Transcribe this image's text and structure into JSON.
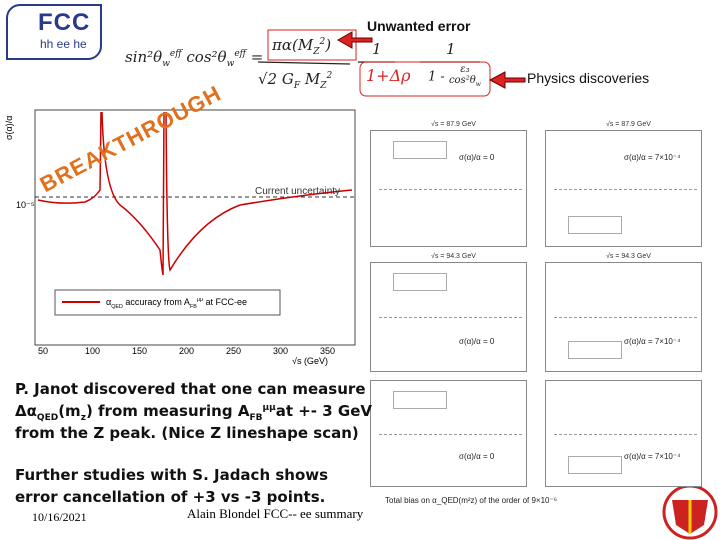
{
  "header": {
    "logo": {
      "title": "FCC",
      "subtitle": "hh ee he"
    },
    "formula": {
      "lhs": [
        "sin²θ",
        "w",
        "eff",
        "cos²θ",
        "w",
        "eff",
        "="
      ],
      "numerator": [
        "πα(M",
        "Z",
        "2",
        ")"
      ],
      "denominator": [
        "√2  G",
        "F",
        " M",
        "Z",
        "2"
      ],
      "factor1": {
        "numerator": "1",
        "denominator": "1+Δρ"
      },
      "factor2": {
        "numerator": "1",
        "denominator": [
          "1 - ",
          "ε₃",
          "cos²θ",
          "w"
        ]
      }
    },
    "annotations": {
      "unwanted": "Unwanted error",
      "discoveries": "Physics discoveries"
    }
  },
  "main_plot": {
    "ylabel": "σ(α)/α",
    "yticks": [
      "10⁻⁵"
    ],
    "xlabel": "√s (GeV)",
    "xticks": [
      "50",
      "100",
      "150",
      "200",
      "250",
      "300",
      "350"
    ],
    "stamp": "BREAKTHROUGH",
    "current": "Current uncertainty",
    "legend": [
      "α",
      "QED",
      " accuracy from A",
      "FB",
      "μμ",
      " at FCC-ee"
    ]
  },
  "small_plots": [
    {
      "title": "√s = 87.9 GeV",
      "note": "σ(α)/α = 0"
    },
    {
      "title": "√s = 87.9 GeV",
      "note": "σ(α)/α = 7×10⁻⁴"
    },
    {
      "title": "√s = 94.3 GeV",
      "note": "σ(α)/α = 0"
    },
    {
      "title": "√s = 94.3 GeV",
      "note": "σ(α)/α = 7×10⁻⁴"
    },
    {
      "title": "",
      "note": "σ(α)/α = 0"
    },
    {
      "title": "",
      "note": "σ(α)/α = 7×10⁻⁴"
    }
  ],
  "bias_note": "Total bias on α_QED(m²z) of the order of 9×10⁻⁶",
  "text_block": {
    "line1": "P. Janot discovered that one can measure",
    "line2": [
      "Δα",
      "QED",
      "(m",
      "z",
      ") from  measuring A",
      "FB",
      "μμ",
      "at +- 3 GeV"
    ],
    "line3": "from the Z peak.  (Nice Z lineshape scan)",
    "line4": "Further studies with S. Jadach shows",
    "line5": "error cancellation of  +3 vs -3 points."
  },
  "footer": {
    "date": "10/16/2021",
    "presenter": "Alain Blondel  FCC-- ee summary"
  }
}
